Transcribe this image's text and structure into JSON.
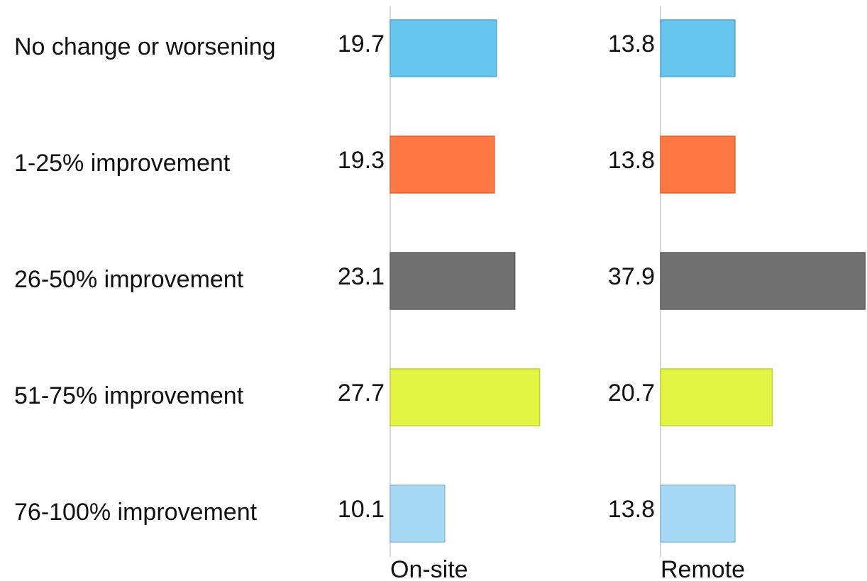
{
  "chart_data": {
    "type": "bar",
    "orientation": "horizontal",
    "categories": [
      "No change or worsening",
      "1-25% improvement",
      "26-50% improvement",
      "51-75% improvement",
      "76-100% improvement"
    ],
    "colors": [
      "#66c5ec",
      "#ff7843",
      "#707070",
      "#e3f542",
      "#a5d9f5"
    ],
    "series": [
      {
        "name": "On-site",
        "values": [
          19.7,
          19.3,
          23.1,
          27.7,
          10.1
        ]
      },
      {
        "name": "Remote",
        "values": [
          13.8,
          13.8,
          37.9,
          20.7,
          13.8
        ]
      }
    ],
    "xlim": [
      0,
      38
    ]
  }
}
